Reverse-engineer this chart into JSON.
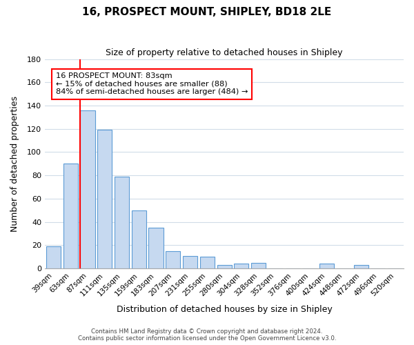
{
  "title": "16, PROSPECT MOUNT, SHIPLEY, BD18 2LE",
  "subtitle": "Size of property relative to detached houses in Shipley",
  "xlabel": "Distribution of detached houses by size in Shipley",
  "ylabel": "Number of detached properties",
  "bar_labels": [
    "39sqm",
    "63sqm",
    "87sqm",
    "111sqm",
    "135sqm",
    "159sqm",
    "183sqm",
    "207sqm",
    "231sqm",
    "255sqm",
    "280sqm",
    "304sqm",
    "328sqm",
    "352sqm",
    "376sqm",
    "400sqm",
    "424sqm",
    "448sqm",
    "472sqm",
    "496sqm",
    "520sqm"
  ],
  "bar_values": [
    19,
    90,
    136,
    119,
    79,
    50,
    35,
    15,
    11,
    10,
    3,
    4,
    5,
    0,
    0,
    0,
    4,
    0,
    3,
    0,
    0
  ],
  "bar_color": "#c6d9f0",
  "bar_edge_color": "#5b9bd5",
  "highlight_bar_index": 2,
  "highlight_color": "#ff0000",
  "vline_x_data": 1.575,
  "ylim": [
    0,
    180
  ],
  "yticks": [
    0,
    20,
    40,
    60,
    80,
    100,
    120,
    140,
    160,
    180
  ],
  "annotation_title": "16 PROSPECT MOUNT: 83sqm",
  "annotation_line1": "← 15% of detached houses are smaller (88)",
  "annotation_line2": "84% of semi-detached houses are larger (484) →",
  "annotation_box_color": "#ffffff",
  "annotation_box_edge": "#ff0000",
  "footer1": "Contains HM Land Registry data © Crown copyright and database right 2024.",
  "footer2": "Contains public sector information licensed under the Open Government Licence v3.0.",
  "background_color": "#ffffff",
  "grid_color": "#d0dce8"
}
